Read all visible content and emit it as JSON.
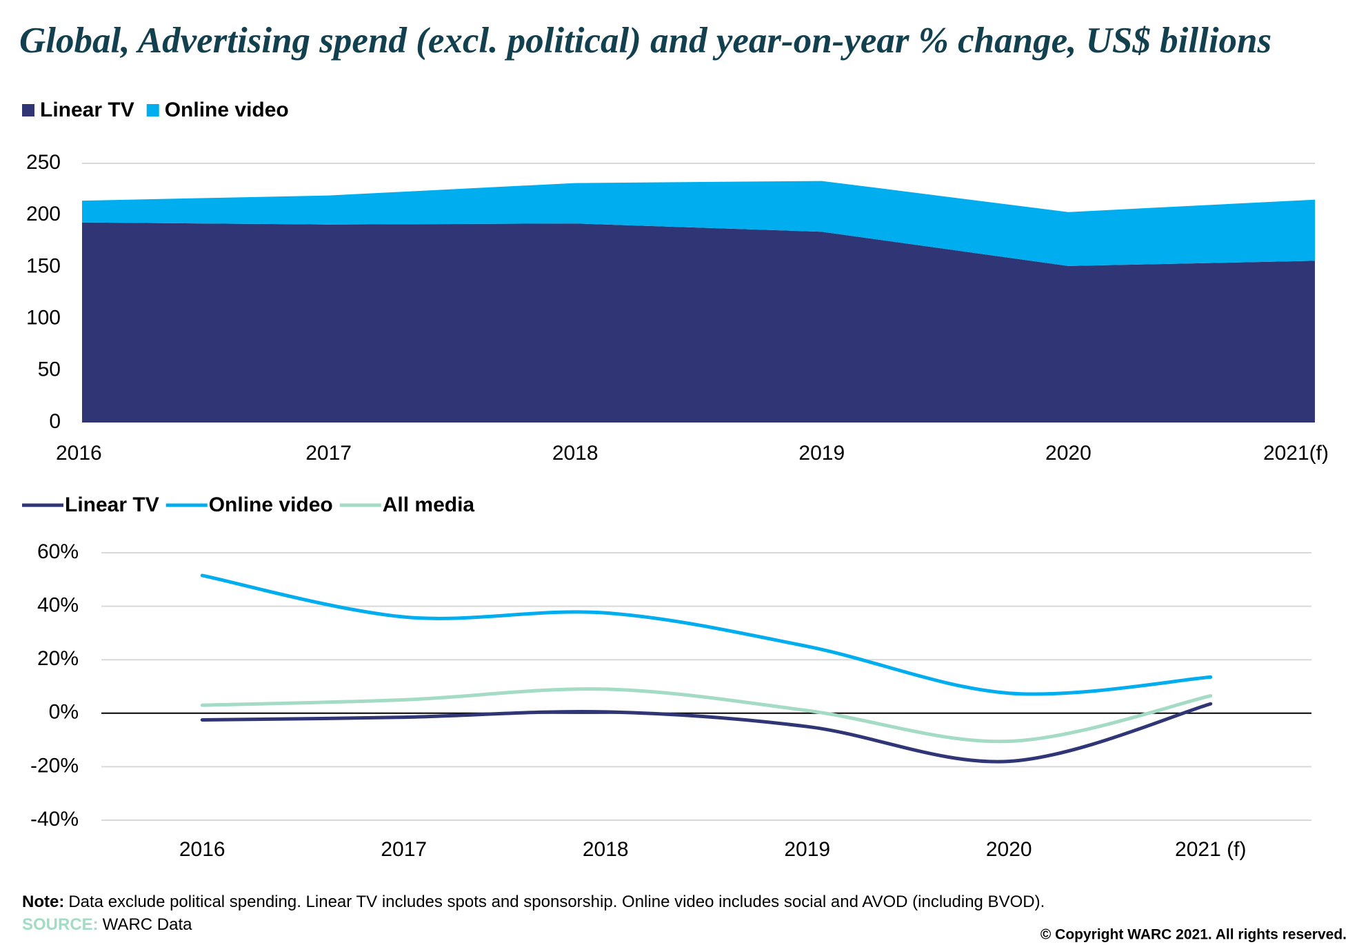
{
  "header": {
    "title": "Global, Advertising spend (excl. political) and year-on-year % change, US$ billions"
  },
  "chart_data": [
    {
      "type": "stacked-area",
      "categories": [
        "2016",
        "2017",
        "2018",
        "2019",
        "2020",
        "2021(f)"
      ],
      "series": [
        {
          "name": "Linear TV",
          "color": "#303675",
          "values": [
            193,
            191,
            192,
            184,
            151,
            156
          ]
        },
        {
          "name": "Online video",
          "color": "#00aeef",
          "values": [
            21,
            28,
            39,
            49,
            52,
            59
          ]
        }
      ],
      "ylim": [
        0,
        250
      ],
      "yticks": [
        0,
        50,
        100,
        150,
        200,
        250
      ],
      "grid": true
    },
    {
      "type": "line",
      "categories": [
        "2016",
        "2017",
        "2018",
        "2019",
        "2020",
        "2021 (f)"
      ],
      "series": [
        {
          "name": "Linear TV",
          "color": "#303675",
          "values": [
            -2.5,
            -1.5,
            0.5,
            -5,
            -18,
            3.5
          ]
        },
        {
          "name": "Online video",
          "color": "#00aeef",
          "values": [
            51.5,
            36,
            37.5,
            25,
            7.5,
            13.5
          ]
        },
        {
          "name": "All media",
          "color": "#a3dbc4",
          "values": [
            3,
            5,
            9,
            1,
            -10.5,
            6.5
          ]
        }
      ],
      "ylim": [
        -40,
        60
      ],
      "yticks": [
        {
          "value": -40,
          "label": "-40%"
        },
        {
          "value": -20,
          "label": "-20%"
        },
        {
          "value": 0,
          "label": "0%"
        },
        {
          "value": 20,
          "label": "20%"
        },
        {
          "value": 40,
          "label": "40%"
        },
        {
          "value": 60,
          "label": "60%"
        }
      ],
      "grid": true
    }
  ],
  "footer": {
    "note_label": "Note:",
    "note": "Data exclude political spending. Linear TV includes spots and sponsorship. Online video includes social and AVOD (including BVOD).",
    "source_label": "SOURCE:",
    "source": "WARC Data",
    "copyright": "© Copyright WARC 2021. All rights reserved."
  }
}
